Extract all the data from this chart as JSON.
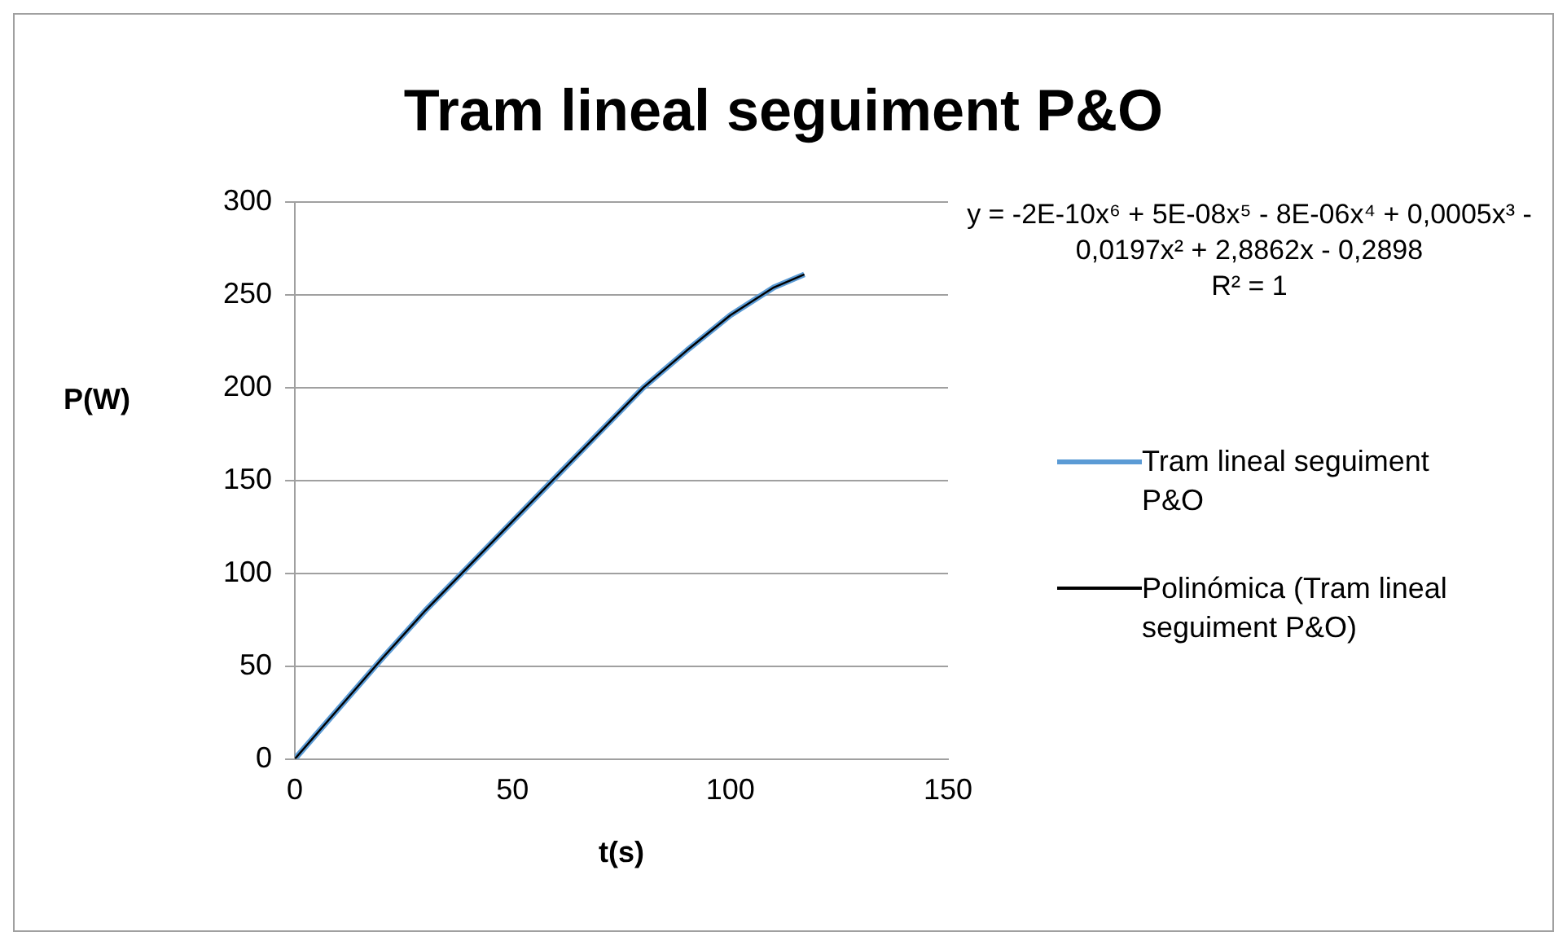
{
  "chart_data": {
    "type": "line",
    "title": "Tram lineal seguiment P&O",
    "xlabel": "t(s)",
    "ylabel": "P(W)",
    "x": [
      0,
      10,
      20,
      30,
      40,
      50,
      60,
      70,
      80,
      90,
      100,
      110,
      117
    ],
    "series": [
      {
        "name": "Tram lineal seguiment P&O",
        "color": "#5b9bd5",
        "values": [
          0,
          27,
          54,
          80,
          104,
          128,
          152,
          176,
          200,
          220,
          239,
          254,
          261
        ]
      },
      {
        "name": "Polinómica (Tram lineal seguiment P&O)",
        "color": "#000000",
        "type": "line",
        "x": [
          0,
          10,
          20,
          30,
          40,
          50,
          60,
          70,
          80,
          90,
          100,
          110,
          117
        ],
        "values": [
          0,
          27,
          54,
          80,
          104,
          128,
          152,
          176,
          200,
          220,
          239,
          254,
          261
        ]
      }
    ],
    "xlim": [
      0,
      150
    ],
    "xticks": [
      0,
      50,
      100,
      150
    ],
    "ylim": [
      0,
      300
    ],
    "yticks": [
      0,
      50,
      100,
      150,
      200,
      250,
      300
    ],
    "grid": "y",
    "legend": "right",
    "marker": "none",
    "line_style": "solid",
    "annotations": [
      "y = -2E-10x⁶ + 5E-08x⁵ - 8E-06x⁴ + 0,0005x³ - 0,0197x² + 2,8862x - 0,2898",
      "R² = 1"
    ]
  }
}
